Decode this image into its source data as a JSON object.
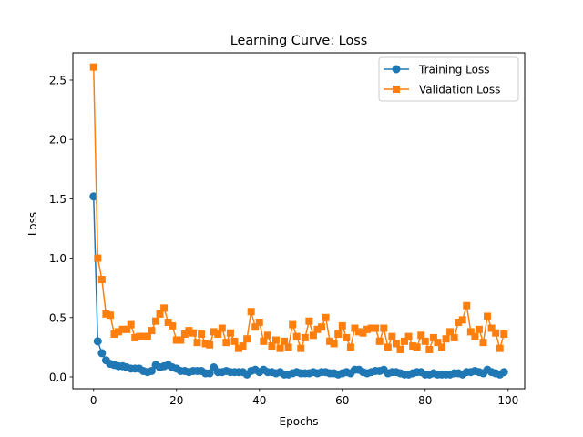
{
  "chart_data": {
    "type": "line",
    "title": "Learning Curve: Loss",
    "xlabel": "Epochs",
    "ylabel": "Loss",
    "xlim": [
      -5,
      104
    ],
    "ylim": [
      -0.1,
      2.73
    ],
    "xticks": [
      0,
      20,
      40,
      60,
      80,
      100
    ],
    "yticks": [
      0.0,
      0.5,
      1.0,
      1.5,
      2.0,
      2.5
    ],
    "xtick_labels": [
      "0",
      "20",
      "40",
      "60",
      "80",
      "100"
    ],
    "ytick_labels": [
      "0.0",
      "0.5",
      "1.0",
      "1.5",
      "2.0",
      "2.5"
    ],
    "legend_position": "top-right",
    "x": [
      0,
      1,
      2,
      3,
      4,
      5,
      6,
      7,
      8,
      9,
      10,
      11,
      12,
      13,
      14,
      15,
      16,
      17,
      18,
      19,
      20,
      21,
      22,
      23,
      24,
      25,
      26,
      27,
      28,
      29,
      30,
      31,
      32,
      33,
      34,
      35,
      36,
      37,
      38,
      39,
      40,
      41,
      42,
      43,
      44,
      45,
      46,
      47,
      48,
      49,
      50,
      51,
      52,
      53,
      54,
      55,
      56,
      57,
      58,
      59,
      60,
      61,
      62,
      63,
      64,
      65,
      66,
      67,
      68,
      69,
      70,
      71,
      72,
      73,
      74,
      75,
      76,
      77,
      78,
      79,
      80,
      81,
      82,
      83,
      84,
      85,
      86,
      87,
      88,
      89,
      90,
      91,
      92,
      93,
      94,
      95,
      96,
      97,
      98,
      99
    ],
    "series": [
      {
        "name": "Training Loss",
        "color": "#1f77b4",
        "marker": "circle",
        "values": [
          1.52,
          0.3,
          0.2,
          0.14,
          0.11,
          0.1,
          0.09,
          0.09,
          0.08,
          0.07,
          0.07,
          0.07,
          0.05,
          0.04,
          0.05,
          0.1,
          0.08,
          0.09,
          0.1,
          0.08,
          0.07,
          0.05,
          0.05,
          0.04,
          0.05,
          0.05,
          0.05,
          0.03,
          0.03,
          0.08,
          0.04,
          0.04,
          0.05,
          0.04,
          0.04,
          0.04,
          0.04,
          0.02,
          0.05,
          0.06,
          0.04,
          0.06,
          0.04,
          0.04,
          0.03,
          0.04,
          0.02,
          0.02,
          0.03,
          0.04,
          0.03,
          0.03,
          0.03,
          0.04,
          0.03,
          0.04,
          0.04,
          0.03,
          0.03,
          0.02,
          0.03,
          0.04,
          0.03,
          0.06,
          0.06,
          0.04,
          0.03,
          0.04,
          0.05,
          0.05,
          0.06,
          0.03,
          0.04,
          0.04,
          0.03,
          0.02,
          0.02,
          0.03,
          0.04,
          0.04,
          0.02,
          0.02,
          0.03,
          0.02,
          0.02,
          0.02,
          0.02,
          0.03,
          0.03,
          0.02,
          0.04,
          0.04,
          0.05,
          0.04,
          0.03,
          0.06,
          0.04,
          0.03,
          0.02,
          0.04
        ]
      },
      {
        "name": "Validation Loss",
        "color": "#ff7f0e",
        "marker": "square",
        "values": [
          2.61,
          1.0,
          0.82,
          0.53,
          0.52,
          0.36,
          0.38,
          0.4,
          0.4,
          0.44,
          0.33,
          0.34,
          0.34,
          0.34,
          0.39,
          0.47,
          0.53,
          0.58,
          0.46,
          0.43,
          0.31,
          0.31,
          0.36,
          0.39,
          0.37,
          0.29,
          0.36,
          0.28,
          0.27,
          0.38,
          0.36,
          0.41,
          0.29,
          0.37,
          0.3,
          0.24,
          0.26,
          0.32,
          0.55,
          0.42,
          0.46,
          0.3,
          0.35,
          0.26,
          0.31,
          0.24,
          0.3,
          0.25,
          0.44,
          0.34,
          0.24,
          0.33,
          0.47,
          0.35,
          0.4,
          0.42,
          0.5,
          0.3,
          0.28,
          0.36,
          0.43,
          0.33,
          0.25,
          0.41,
          0.38,
          0.37,
          0.4,
          0.41,
          0.41,
          0.3,
          0.41,
          0.25,
          0.34,
          0.28,
          0.23,
          0.3,
          0.34,
          0.26,
          0.25,
          0.35,
          0.3,
          0.23,
          0.33,
          0.29,
          0.25,
          0.32,
          0.38,
          0.33,
          0.46,
          0.48,
          0.6,
          0.38,
          0.34,
          0.4,
          0.29,
          0.51,
          0.41,
          0.37,
          0.24,
          0.36
        ]
      }
    ]
  }
}
